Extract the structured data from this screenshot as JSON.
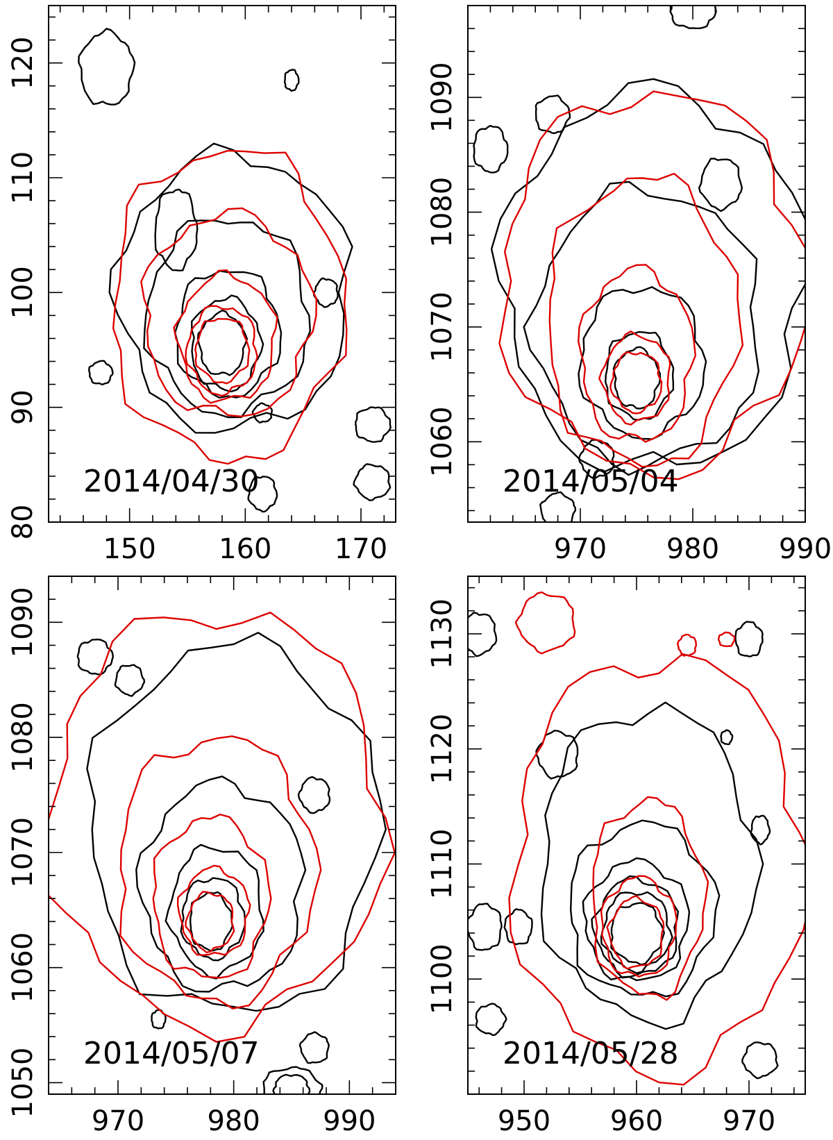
{
  "colors": {
    "black_contours": "#000000",
    "red_contours": "#dd0000"
  },
  "chart_data": [
    {
      "type": "contour",
      "title": "",
      "xlabel": "",
      "ylabel": "",
      "annotation": "2014/04/30",
      "xlim": [
        143,
        173
      ],
      "ylim": [
        80,
        125
      ],
      "xticks": [
        150,
        160,
        170
      ],
      "yticks": [
        80,
        90,
        100,
        110,
        120
      ],
      "xticklabels": [
        "150",
        "160",
        "170"
      ],
      "yticklabels": [
        "80",
        "90",
        "100",
        "110",
        "120"
      ],
      "peak": [
        158,
        95
      ],
      "series": [
        {
          "color": "black",
          "contours": [
            {
              "cx": 158,
              "cy": 95.5,
              "rx": 2.0,
              "ry": 2.7
            },
            {
              "cx": 158.3,
              "cy": 95.5,
              "rx": 3.0,
              "ry": 4.0
            },
            {
              "cx": 158.5,
              "cy": 96.5,
              "rx": 4.5,
              "ry": 5.5
            },
            {
              "cx": 158.5,
              "cy": 98,
              "rx": 7,
              "ry": 8.5
            },
            {
              "cx": 159,
              "cy": 100,
              "rx": 10,
              "ry": 12
            },
            {
              "cx": 148,
              "cy": 119.5,
              "rx": 2.3,
              "ry": 3.2
            },
            {
              "cx": 164,
              "cy": 118.5,
              "rx": 0.6,
              "ry": 0.9
            },
            {
              "cx": 154,
              "cy": 105.5,
              "rx": 1.8,
              "ry": 3.5
            },
            {
              "cx": 167,
              "cy": 100,
              "rx": 1.0,
              "ry": 1.2
            },
            {
              "cx": 161.5,
              "cy": 89.5,
              "rx": 0.8,
              "ry": 0.8
            },
            {
              "cx": 147.5,
              "cy": 93,
              "rx": 1.0,
              "ry": 1.0
            },
            {
              "cx": 171,
              "cy": 88.5,
              "rx": 1.5,
              "ry": 1.5
            },
            {
              "cx": 161.5,
              "cy": 82.5,
              "rx": 1.2,
              "ry": 1.5
            },
            {
              "cx": 171,
              "cy": 83.5,
              "rx": 1.5,
              "ry": 1.5
            }
          ]
        },
        {
          "color": "red",
          "contours": [
            {
              "cx": 158,
              "cy": 95,
              "rx": 2.3,
              "ry": 2.8
            },
            {
              "cx": 158,
              "cy": 95,
              "rx": 3.0,
              "ry": 3.8
            },
            {
              "cx": 158.4,
              "cy": 96,
              "rx": 4.2,
              "ry": 5.5
            },
            {
              "cx": 158.5,
              "cy": 98,
              "rx": 7.3,
              "ry": 8.8
            },
            {
              "cx": 158.5,
              "cy": 99,
              "rx": 10,
              "ry": 13.5
            }
          ]
        }
      ]
    },
    {
      "type": "contour",
      "title": "",
      "xlabel": "",
      "ylabel": "",
      "annotation": "2014/05/04",
      "xlim": [
        960,
        990
      ],
      "ylim": [
        1053,
        1098
      ],
      "xticks": [
        970,
        980,
        990
      ],
      "yticks": [
        1060,
        1070,
        1080,
        1090
      ],
      "xticklabels": [
        "970",
        "980",
        "990"
      ],
      "yticklabels": [
        "1060",
        "1070",
        "1080",
        "1090"
      ],
      "peak": [
        975,
        1065
      ],
      "series": [
        {
          "color": "black",
          "contours": [
            {
              "cx": 975,
              "cy": 1065.5,
              "rx": 2.0,
              "ry": 2.6
            },
            {
              "cx": 975.2,
              "cy": 1065.8,
              "rx": 3.0,
              "ry": 3.8
            },
            {
              "cx": 975.5,
              "cy": 1067,
              "rx": 5.5,
              "ry": 6.5
            },
            {
              "cx": 976,
              "cy": 1070,
              "rx": 10,
              "ry": 12
            },
            {
              "cx": 976.5,
              "cy": 1074,
              "rx": 13.5,
              "ry": 16.5
            },
            {
              "cx": 967.5,
              "cy": 1088.5,
              "rx": 1.5,
              "ry": 1.6
            },
            {
              "cx": 962,
              "cy": 1085.5,
              "rx": 1.5,
              "ry": 2.0
            },
            {
              "cx": 982.5,
              "cy": 1082.5,
              "rx": 1.8,
              "ry": 2.2
            },
            {
              "cx": 971.5,
              "cy": 1058.5,
              "rx": 1.5,
              "ry": 1.6
            },
            {
              "cx": 968,
              "cy": 1054,
              "rx": 1.5,
              "ry": 1.5
            },
            {
              "cx": 980,
              "cy": 1097.5,
              "rx": 2.0,
              "ry": 1.5
            }
          ]
        },
        {
          "color": "red",
          "contours": [
            {
              "cx": 975,
              "cy": 1065.2,
              "rx": 2.2,
              "ry": 2.6
            },
            {
              "cx": 975,
              "cy": 1065.5,
              "rx": 3.0,
              "ry": 3.8
            },
            {
              "cx": 975,
              "cy": 1067.5,
              "rx": 5.0,
              "ry": 7.5
            },
            {
              "cx": 975.5,
              "cy": 1070.5,
              "rx": 8.5,
              "ry": 12.5
            },
            {
              "cx": 976.5,
              "cy": 1074,
              "rx": 13.5,
              "ry": 16.5
            }
          ]
        }
      ]
    },
    {
      "type": "contour",
      "title": "",
      "xlabel": "",
      "ylabel": "",
      "annotation": "2014/05/07",
      "xlim": [
        964,
        994
      ],
      "ylim": [
        1049,
        1094
      ],
      "xticks": [
        970,
        980,
        990
      ],
      "yticks": [
        1050,
        1060,
        1070,
        1080,
        1090
      ],
      "xticklabels": [
        "970",
        "980",
        "990"
      ],
      "yticklabels": [
        "1050",
        "1060",
        "1070",
        "1080",
        "1090"
      ],
      "peak": [
        978,
        1064
      ],
      "series": [
        {
          "color": "black",
          "contours": [
            {
              "cx": 978,
              "cy": 1064,
              "rx": 1.8,
              "ry": 2.5
            },
            {
              "cx": 978.2,
              "cy": 1064.3,
              "rx": 2.7,
              "ry": 3.5
            },
            {
              "cx": 978.5,
              "cy": 1065,
              "rx": 4.0,
              "ry": 5.5
            },
            {
              "cx": 979,
              "cy": 1067,
              "rx": 7.0,
              "ry": 9.0
            },
            {
              "cx": 980,
              "cy": 1072,
              "rx": 12.5,
              "ry": 16
            },
            {
              "cx": 968,
              "cy": 1087,
              "rx": 1.5,
              "ry": 1.5
            },
            {
              "cx": 971,
              "cy": 1085,
              "rx": 1.2,
              "ry": 1.3
            },
            {
              "cx": 987,
              "cy": 1075,
              "rx": 1.3,
              "ry": 1.5
            },
            {
              "cx": 987,
              "cy": 1053,
              "rx": 1.2,
              "ry": 1.3
            },
            {
              "cx": 973.5,
              "cy": 1055.5,
              "rx": 0.6,
              "ry": 0.8
            },
            {
              "cx": 985,
              "cy": 1049.5,
              "rx": 2.5,
              "ry": 1.8
            },
            {
              "cx": 985,
              "cy": 1049.5,
              "rx": 1.5,
              "ry": 1.2
            }
          ]
        },
        {
          "color": "red",
          "contours": [
            {
              "cx": 978,
              "cy": 1064,
              "rx": 2.0,
              "ry": 2.5
            },
            {
              "cx": 978.3,
              "cy": 1064.8,
              "rx": 3.0,
              "ry": 3.8
            },
            {
              "cx": 978,
              "cy": 1066,
              "rx": 5.0,
              "ry": 7.0
            },
            {
              "cx": 978.5,
              "cy": 1068.5,
              "rx": 8.5,
              "ry": 11.5
            },
            {
              "cx": 978.5,
              "cy": 1073,
              "rx": 14.5,
              "ry": 18
            }
          ]
        }
      ]
    },
    {
      "type": "contour",
      "title": "",
      "xlabel": "",
      "ylabel": "",
      "annotation": "2014/05/28",
      "xlim": [
        945,
        975
      ],
      "ylim": [
        1090,
        1135
      ],
      "xticks": [
        950,
        960,
        970
      ],
      "yticks": [
        1100,
        1110,
        1120,
        1130
      ],
      "xticklabels": [
        "950",
        "960",
        "970"
      ],
      "yticklabels": [
        "1100",
        "1110",
        "1120",
        "1130"
      ],
      "peak": [
        960,
        1104
      ],
      "series": [
        {
          "color": "black",
          "contours": [
            {
              "cx": 960,
              "cy": 1104,
              "rx": 2.3,
              "ry": 2.6
            },
            {
              "cx": 960,
              "cy": 1104.2,
              "rx": 3.0,
              "ry": 3.4
            },
            {
              "cx": 960,
              "cy": 1104.5,
              "rx": 3.7,
              "ry": 4.2
            },
            {
              "cx": 960,
              "cy": 1105,
              "rx": 4.6,
              "ry": 5.2
            },
            {
              "cx": 960.5,
              "cy": 1106,
              "rx": 6.5,
              "ry": 7.5
            },
            {
              "cx": 961,
              "cy": 1110,
              "rx": 9.5,
              "ry": 13.5
            },
            {
              "cx": 946,
              "cy": 1130,
              "rx": 1.5,
              "ry": 1.8
            },
            {
              "cx": 953,
              "cy": 1119.5,
              "rx": 1.8,
              "ry": 2.0
            },
            {
              "cx": 970,
              "cy": 1129.5,
              "rx": 1.2,
              "ry": 1.5
            },
            {
              "cx": 968,
              "cy": 1121,
              "rx": 0.5,
              "ry": 0.6
            },
            {
              "cx": 971,
              "cy": 1113,
              "rx": 0.8,
              "ry": 1.2
            },
            {
              "cx": 971,
              "cy": 1093,
              "rx": 1.5,
              "ry": 1.5
            },
            {
              "cx": 946.5,
              "cy": 1104.5,
              "rx": 1.5,
              "ry": 2.0
            },
            {
              "cx": 949.5,
              "cy": 1104.5,
              "rx": 1.2,
              "ry": 1.5
            },
            {
              "cx": 947,
              "cy": 1096.5,
              "rx": 1.3,
              "ry": 1.3
            }
          ]
        },
        {
          "color": "red",
          "contours": [
            {
              "cx": 960,
              "cy": 1104,
              "rx": 2.4,
              "ry": 3.0
            },
            {
              "cx": 960.2,
              "cy": 1104.5,
              "rx": 3.3,
              "ry": 4.3
            },
            {
              "cx": 961,
              "cy": 1107,
              "rx": 5.0,
              "ry": 8.5
            },
            {
              "cx": 962,
              "cy": 1110,
              "rx": 13,
              "ry": 18
            },
            {
              "cx": 952,
              "cy": 1131,
              "rx": 2.5,
              "ry": 2.5
            },
            {
              "cx": 964.5,
              "cy": 1129,
              "rx": 0.8,
              "ry": 0.9
            },
            {
              "cx": 968,
              "cy": 1129.5,
              "rx": 0.7,
              "ry": 0.6
            }
          ]
        }
      ]
    }
  ]
}
